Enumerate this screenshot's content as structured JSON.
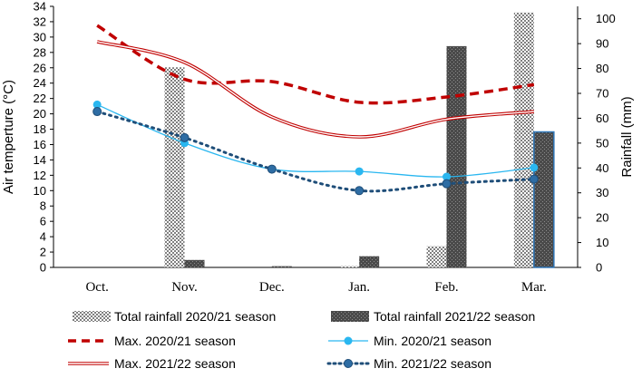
{
  "chart_data": {
    "type": "bar",
    "categories": [
      "Oct.",
      "Nov.",
      "Dec.",
      "Jan.",
      "Feb.",
      "Mar."
    ],
    "ylabel_left": "Air temperture (°C)",
    "ylabel_right": "Rainfall (mm)",
    "ylim_left": [
      0,
      34
    ],
    "ylim_right": [
      0,
      105
    ],
    "yticks_left": [
      "0",
      "2",
      "4",
      "6",
      "8",
      "10",
      "12",
      "14",
      "16",
      "18",
      "20",
      "22",
      "24",
      "26",
      "28",
      "30",
      "32",
      "34"
    ],
    "yticks_right": [
      "0",
      "10",
      "20",
      "30",
      "40",
      "50",
      "60",
      "70",
      "80",
      "90",
      "100"
    ],
    "bar_series": [
      {
        "name": "Total rainfall 2020/21 season",
        "values": [
          0,
          80.5,
          0,
          0.5,
          8.5,
          102.5
        ],
        "pattern": "checker",
        "axis": "right"
      },
      {
        "name": "Total rainfall 2021/22 season",
        "values": [
          0,
          3,
          0.5,
          4.5,
          89,
          54.5
        ],
        "pattern": "dark-dots",
        "axis": "right"
      }
    ],
    "line_series": [
      {
        "name": "Max. 2020/21 season",
        "values": [
          31.5,
          24.5,
          24.2,
          21.5,
          22.2,
          23.8
        ],
        "style": "dashed",
        "color": "#c00000",
        "axis": "left"
      },
      {
        "name": "Min. 2020/21 season",
        "values": [
          21.2,
          16.2,
          12.8,
          12.5,
          11.8,
          13.0
        ],
        "style": "light-blue-markers",
        "color": "#2ab7f0",
        "axis": "left"
      },
      {
        "name": "Max. 2021/22 season",
        "values": [
          29.4,
          26.7,
          19.6,
          17.0,
          19.3,
          20.3
        ],
        "style": "double-line",
        "color": "#c00000",
        "axis": "left"
      },
      {
        "name": "Min. 2021/22 season",
        "values": [
          20.3,
          16.9,
          12.8,
          10.0,
          10.9,
          11.5
        ],
        "style": "dotted-markers",
        "color": "#1f4e79",
        "axis": "left"
      }
    ]
  },
  "legend": [
    "Total rainfall 2020/21 season",
    "Total rainfall 2021/22 season",
    "Max. 2020/21 season",
    "Min. 2020/21 season",
    "Max. 2021/22 season",
    "Min. 2021/22 season"
  ]
}
